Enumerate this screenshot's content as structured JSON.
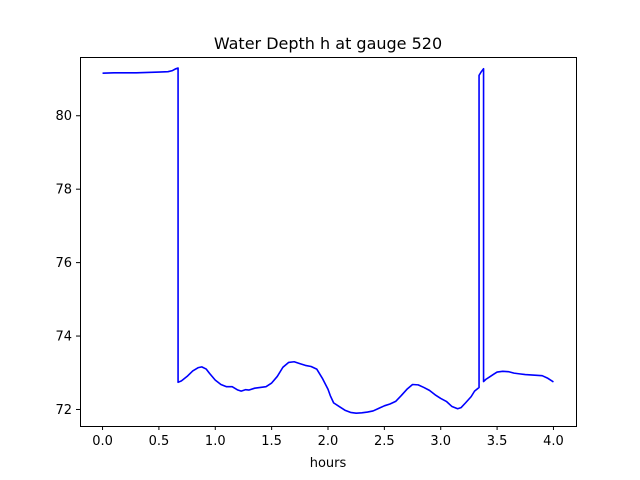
{
  "chart_data": {
    "type": "line",
    "title": "Water Depth h at gauge 520",
    "xlabel": "hours",
    "ylabel": "",
    "xlim": [
      -0.2,
      4.2
    ],
    "ylim": [
      71.55,
      81.6
    ],
    "xticks": [
      0.0,
      0.5,
      1.0,
      1.5,
      2.0,
      2.5,
      3.0,
      3.5,
      4.0
    ],
    "xtick_labels": [
      "0.0",
      "0.5",
      "1.0",
      "1.5",
      "2.0",
      "2.5",
      "3.0",
      "3.5",
      "4.0"
    ],
    "yticks": [
      72,
      74,
      76,
      78,
      80
    ],
    "ytick_labels": [
      "72",
      "74",
      "76",
      "78",
      "80"
    ],
    "grid": false,
    "legend": "none",
    "series": [
      {
        "color": "#0000ff",
        "x": [
          0.0,
          0.1,
          0.2,
          0.3,
          0.4,
          0.5,
          0.58,
          0.62,
          0.65,
          0.67,
          0.67,
          0.7,
          0.75,
          0.8,
          0.85,
          0.88,
          0.92,
          0.95,
          1.0,
          1.05,
          1.1,
          1.15,
          1.2,
          1.23,
          1.27,
          1.3,
          1.35,
          1.45,
          1.5,
          1.55,
          1.6,
          1.65,
          1.7,
          1.75,
          1.8,
          1.85,
          1.9,
          1.95,
          2.0,
          2.02,
          2.05,
          2.1,
          2.15,
          2.2,
          2.25,
          2.3,
          2.35,
          2.4,
          2.45,
          2.5,
          2.55,
          2.6,
          2.65,
          2.7,
          2.75,
          2.8,
          2.85,
          2.9,
          2.95,
          3.0,
          3.05,
          3.1,
          3.15,
          3.18,
          3.22,
          3.27,
          3.3,
          3.34,
          3.34,
          3.36,
          3.38,
          3.38,
          3.4,
          3.43,
          3.47,
          3.5,
          3.55,
          3.6,
          3.65,
          3.7,
          3.75,
          3.8,
          3.85,
          3.9,
          3.95,
          4.0
        ],
        "y": [
          81.16,
          81.17,
          81.17,
          81.17,
          81.18,
          81.19,
          81.2,
          81.23,
          81.28,
          81.3,
          72.74,
          72.78,
          72.9,
          73.05,
          73.14,
          73.16,
          73.1,
          72.98,
          72.8,
          72.68,
          72.62,
          72.62,
          72.53,
          72.5,
          72.54,
          72.53,
          72.58,
          72.62,
          72.72,
          72.9,
          73.15,
          73.28,
          73.3,
          73.25,
          73.2,
          73.17,
          73.1,
          72.85,
          72.55,
          72.38,
          72.18,
          72.08,
          71.98,
          71.92,
          71.9,
          71.91,
          71.93,
          71.96,
          72.03,
          72.1,
          72.15,
          72.22,
          72.38,
          72.55,
          72.68,
          72.67,
          72.6,
          72.52,
          72.4,
          72.3,
          72.22,
          72.08,
          72.02,
          72.05,
          72.18,
          72.35,
          72.5,
          72.6,
          81.1,
          81.2,
          81.28,
          72.76,
          72.82,
          72.88,
          72.96,
          73.02,
          73.04,
          73.03,
          72.99,
          72.97,
          72.95,
          72.94,
          72.93,
          72.92,
          72.85,
          72.75
        ]
      }
    ]
  }
}
